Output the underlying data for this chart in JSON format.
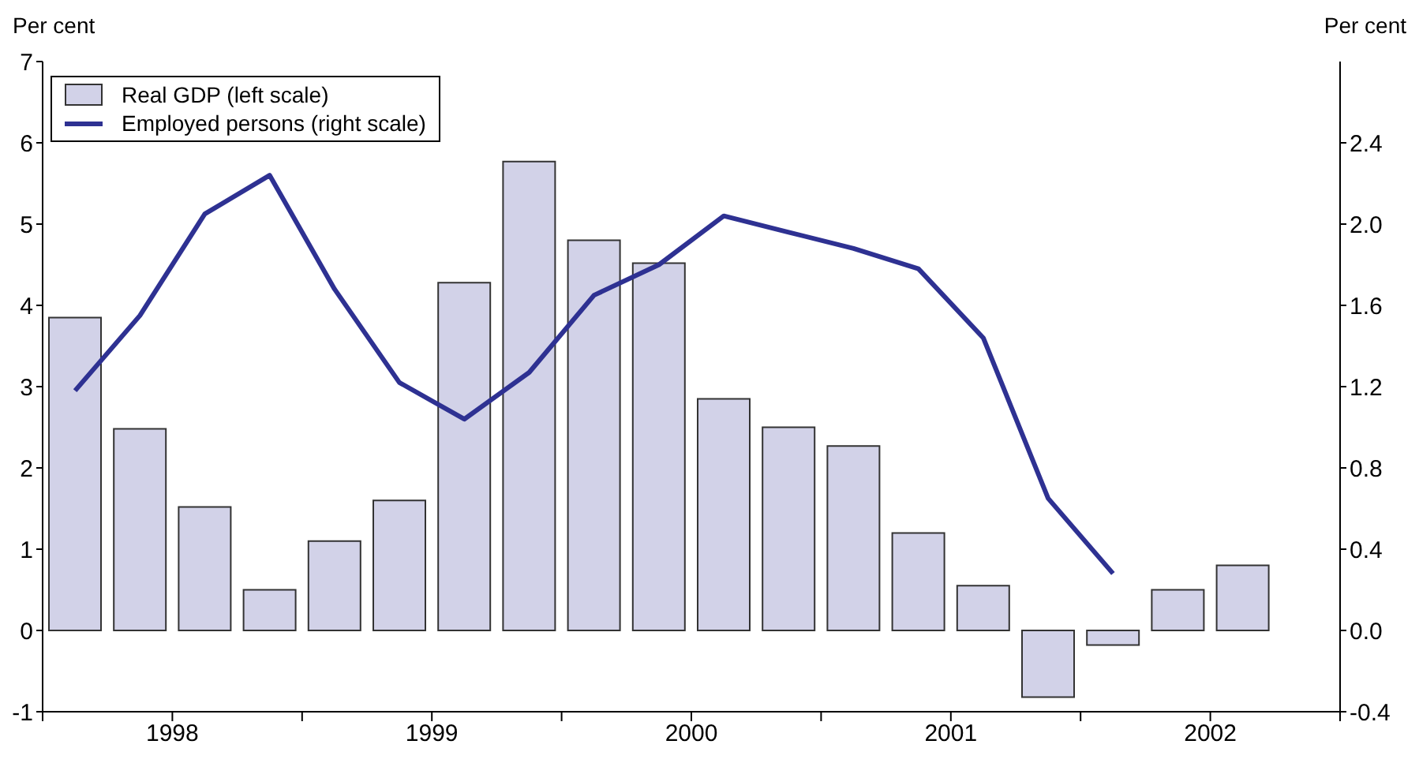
{
  "chart_data": {
    "type": "bar",
    "ylabel": "Per cent",
    "y2label": "Per cent",
    "x": [
      1998.125,
      1998.375,
      1998.625,
      1998.875,
      1999.125,
      1999.375,
      1999.625,
      1999.875,
      2000.125,
      2000.375,
      2000.625,
      2000.875,
      2001.125,
      2001.375,
      2001.625,
      2001.875,
      2002.125,
      2002.375,
      2002.625
    ],
    "xlim": [
      1998,
      2003
    ],
    "xticks": [
      {
        "value": 1998,
        "label": null
      },
      {
        "value": 1998.5,
        "label": "1998"
      },
      {
        "value": 1999,
        "label": null
      },
      {
        "value": 1999.5,
        "label": "1999"
      },
      {
        "value": 2000,
        "label": null
      },
      {
        "value": 2000.5,
        "label": "2000"
      },
      {
        "value": 2001,
        "label": null
      },
      {
        "value": 2001.5,
        "label": "2001"
      },
      {
        "value": 2002,
        "label": null
      },
      {
        "value": 2002.5,
        "label": "2002"
      },
      {
        "value": 2003,
        "label": null
      }
    ],
    "series": [
      {
        "name": "Real GDP (left scale)",
        "color": "#d2d2e8",
        "values": [
          3.85,
          2.48,
          1.52,
          0.5,
          1.1,
          1.6,
          4.28,
          5.77,
          4.8,
          4.52,
          2.85,
          2.5,
          2.27,
          1.2,
          0.55,
          -0.82,
          -0.18,
          0.5,
          0.8
        ]
      },
      {
        "name": "Employed persons (right scale)",
        "type": "line",
        "axis": "y2",
        "color": "#2e3192",
        "values": [
          1.18,
          1.55,
          2.05,
          2.24,
          1.68,
          1.22,
          1.04,
          1.27,
          1.65,
          1.8,
          2.04,
          1.96,
          1.88,
          1.78,
          1.44,
          0.65,
          0.28,
          null,
          null
        ]
      }
    ],
    "ylim": [
      -1,
      7
    ],
    "yticks": [
      -1,
      0,
      1,
      2,
      3,
      4,
      5,
      6,
      7
    ],
    "y2lim": [
      -0.4,
      2.8
    ],
    "y2ticks": [
      {
        "value": -0.4,
        "label": "-0.4"
      },
      {
        "value": 0,
        "label": "0.0"
      },
      {
        "value": 0.4,
        "label": "0.4"
      },
      {
        "value": 0.8,
        "label": "0.8"
      },
      {
        "value": 1.2,
        "label": "1.2"
      },
      {
        "value": 1.6,
        "label": "1.6"
      },
      {
        "value": 2,
        "label": "2.0"
      },
      {
        "value": 2.4,
        "label": "2.4"
      }
    ],
    "legend": "top left",
    "grid": false,
    "marker": "none",
    "line_style": "solid"
  }
}
